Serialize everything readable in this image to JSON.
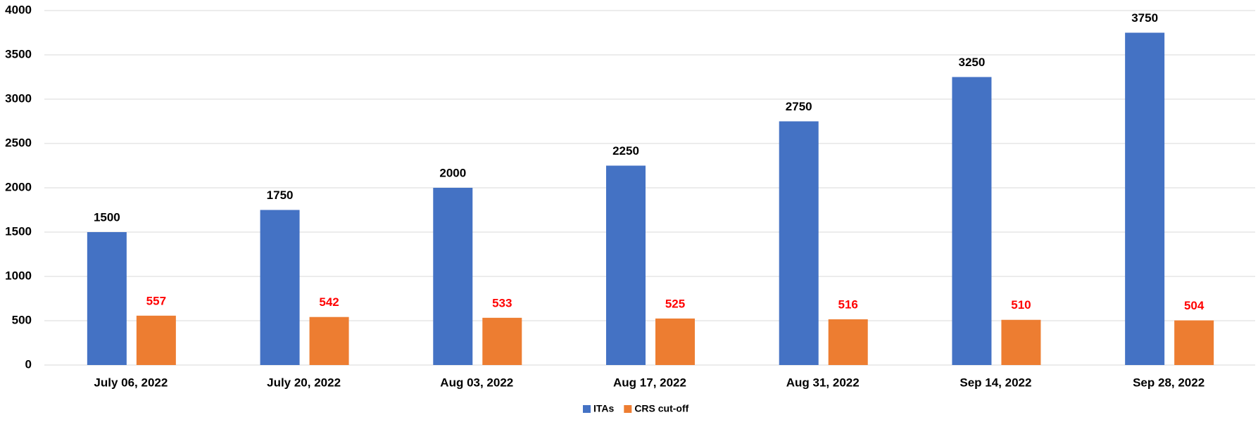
{
  "chart_data": {
    "type": "bar",
    "categories": [
      "July 06, 2022",
      "July 20, 2022",
      "Aug 03, 2022",
      "Aug 17, 2022",
      "Aug 31, 2022",
      "Sep 14, 2022",
      "Sep 28, 2022"
    ],
    "series": [
      {
        "name": "ITAs",
        "color": "#4472c4",
        "label_color": "#000000",
        "values": [
          1500,
          1750,
          2000,
          2250,
          2750,
          3250,
          3750
        ]
      },
      {
        "name": "CRS cut-off",
        "color": "#ed7d31",
        "label_color": "#ff0000",
        "values": [
          557,
          542,
          533,
          525,
          516,
          510,
          504
        ]
      }
    ],
    "ylim": [
      0,
      4000
    ],
    "yticks": [
      0,
      500,
      1000,
      1500,
      2000,
      2500,
      3000,
      3500,
      4000
    ],
    "grid": true,
    "legend": "bottom"
  }
}
